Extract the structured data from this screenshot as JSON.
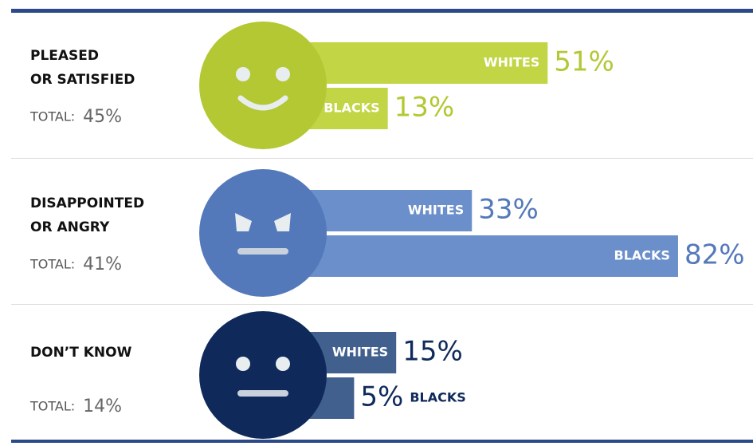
{
  "chart_data": {
    "type": "bar",
    "categories": [
      [
        "PLEASED",
        "OR SATISFIED"
      ],
      [
        "DISAPPOINTED",
        "OR ANGRY"
      ],
      [
        "DON’T KNOW"
      ]
    ],
    "total_label": "TOTAL:",
    "totals": [
      45,
      41,
      14
    ],
    "total_labels": [
      "45%",
      "41%",
      "14%"
    ],
    "colors": [
      "#b3c833",
      "#5479bb",
      "#0f2a5a"
    ],
    "bar_colors": [
      "#c2d545",
      "#6b8fcb",
      "#41608e"
    ],
    "series": [
      {
        "name": "WHITES",
        "values": [
          51,
          33,
          15
        ],
        "value_labels": [
          "51%",
          "33%",
          "15%"
        ]
      },
      {
        "name": "BLACKS",
        "values": [
          13,
          82,
          5
        ],
        "value_labels": [
          "13%",
          "82%",
          "5%"
        ]
      }
    ]
  }
}
